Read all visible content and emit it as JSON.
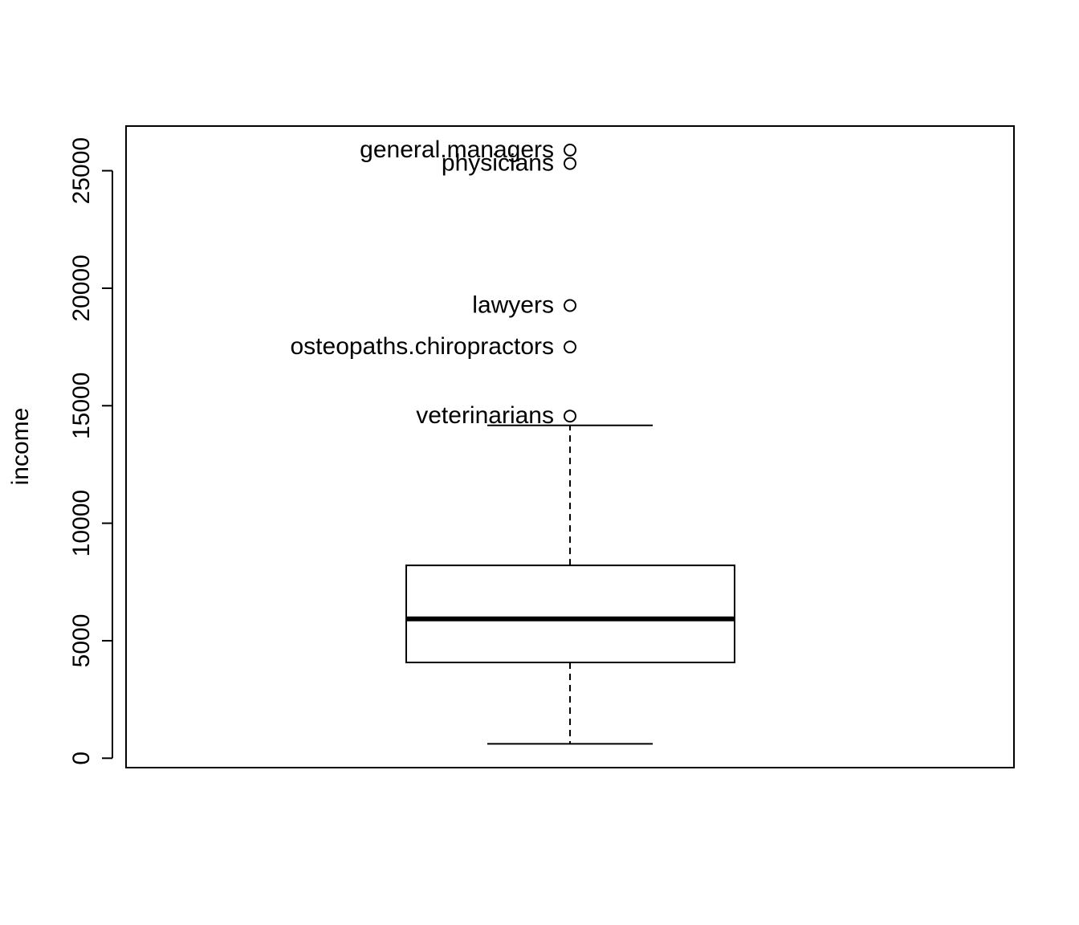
{
  "chart_data": {
    "type": "box",
    "title": "",
    "xlabel": "",
    "ylabel": "income",
    "ylim": [
      -400,
      26900
    ],
    "y_ticks": [
      0,
      5000,
      10000,
      15000,
      20000,
      25000
    ],
    "box": {
      "lower_whisker": 611,
      "q1": 4075,
      "median": 5930,
      "q3": 8206,
      "upper_whisker": 14163
    },
    "outliers": [
      {
        "label": "general.managers",
        "value": 25879
      },
      {
        "label": "physicians",
        "value": 25308
      },
      {
        "label": "lawyers",
        "value": 19263
      },
      {
        "label": "osteopaths.chiropractors",
        "value": 17498
      },
      {
        "label": "veterinarians",
        "value": 14558
      }
    ],
    "grid": false,
    "legend": "none"
  }
}
